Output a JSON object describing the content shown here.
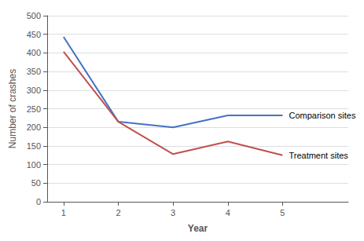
{
  "chart_data": {
    "type": "line",
    "x": [
      1,
      2,
      3,
      4,
      5
    ],
    "series": [
      {
        "name": "Comparison sites",
        "color": "#4472C4",
        "values": [
          443,
          215,
          200,
          232,
          232
        ]
      },
      {
        "name": "Treatment sites",
        "color": "#C0504D",
        "values": [
          403,
          215,
          128,
          162,
          125
        ]
      }
    ],
    "xlabel": "Year",
    "ylabel": "Number of crashes",
    "xlim": [
      0.7,
      6.2
    ],
    "xticks": [
      1,
      2,
      3,
      4,
      5
    ],
    "ylim": [
      0,
      500
    ],
    "yticks": [
      0,
      50,
      100,
      150,
      200,
      250,
      300,
      350,
      400,
      450,
      500
    ],
    "grid": true
  }
}
